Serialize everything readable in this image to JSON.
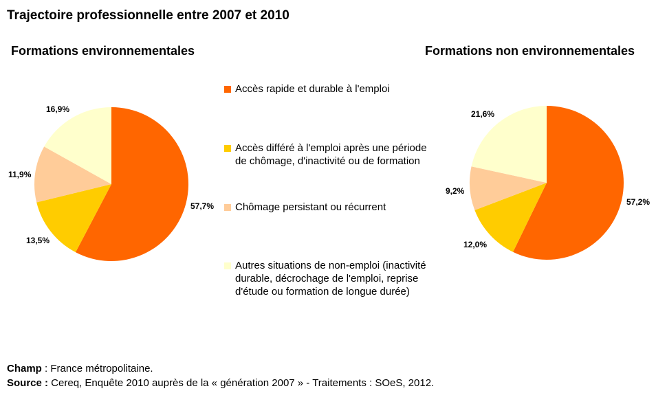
{
  "title": "Trajectoire professionnelle entre 2007 et 2010",
  "colors": {
    "acces_rapide": "#FF6600",
    "acces_differe": "#FFCC00",
    "chomage": "#FFCC99",
    "autres": "#FFFFCC"
  },
  "legend": [
    {
      "label": "Accès rapide et durable à l'emploi",
      "color": "#FF6600"
    },
    {
      "label": "Accès différé à l'emploi après une période de chômage, d'inactivité ou de formation",
      "color": "#FFCC00"
    },
    {
      "label": "Chômage persistant ou récurrent",
      "color": "#FFCC99"
    },
    {
      "label": "Autres situations de non-emploi (inactivité durable, décrochage de l'emploi, reprise d'étude ou formation de longue durée)",
      "color": "#FFFFCC"
    }
  ],
  "chart_data": [
    {
      "type": "pie",
      "title": "Formations environnementales",
      "labels": [
        "Accès rapide et durable à l'emploi",
        "Accès différé à l'emploi après une période de chômage, d'inactivité ou de formation",
        "Chômage persistant ou récurrent",
        "Autres situations de non-emploi (inactivité durable, décrochage de l'emploi, reprise d'étude ou formation de longue durée)"
      ],
      "values": [
        57.7,
        13.5,
        11.9,
        16.9
      ],
      "value_labels": [
        "57,7%",
        "13,5%",
        "11,9%",
        "16,9%"
      ]
    },
    {
      "type": "pie",
      "title": "Formations non environnementales",
      "labels": [
        "Accès rapide et durable à l'emploi",
        "Accès différé à l'emploi après une période de chômage, d'inactivité ou de formation",
        "Chômage persistant ou récurrent",
        "Autres situations de non-emploi (inactivité durable, décrochage de l'emploi, reprise d'étude ou formation de longue durée)"
      ],
      "values": [
        57.2,
        12.0,
        9.2,
        21.6
      ],
      "value_labels": [
        "57,2%",
        "12,0%",
        "9,2%",
        "21,6%"
      ]
    }
  ],
  "footer": {
    "champ_label": "Champ",
    "champ_text": " : France métropolitaine.",
    "source_label": "Source :",
    "source_text": " Cereq, Enquête 2010 auprès de la « génération 2007 » - Traitements : SOeS, 2012."
  }
}
